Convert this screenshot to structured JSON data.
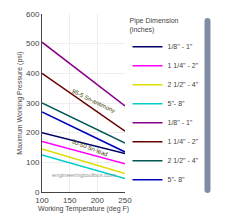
{
  "chart_data": {
    "type": "line",
    "xlabel": "Working Temperature (deg F)",
    "ylabel": "Maximum Working Pressure (psi)",
    "x": [
      100,
      250
    ],
    "xlim": [
      100,
      250
    ],
    "ylim": [
      0,
      600
    ],
    "xticks": [
      100,
      150,
      200,
      250
    ],
    "yticks": [
      0,
      100,
      200,
      300,
      400,
      500,
      600
    ],
    "grid": true,
    "legend": "right",
    "legend_title": "Pipe Dimension\n(inches)",
    "series": [
      {
        "name": "1/8\" - 1\"",
        "color": "#000066",
        "values": [
          200,
          130
        ]
      },
      {
        "name": "1 1/4\" - 2\"",
        "color": "#ff00ff",
        "values": [
          170,
          95
        ]
      },
      {
        "name": "2 1/2\" - 4\"",
        "color": "#dddd00",
        "values": [
          145,
          62
        ]
      },
      {
        "name": "5\"- 8\"",
        "color": "#00cccc",
        "values": [
          125,
          45
        ]
      },
      {
        "name": "1/8\" - 1\"",
        "color": "#880088",
        "values": [
          505,
          290
        ]
      },
      {
        "name": "1 1/4\" - 2\"",
        "color": "#660000",
        "values": [
          400,
          205
        ]
      },
      {
        "name": "2 1/2\" - 4\"",
        "color": "#005555",
        "values": [
          300,
          165
        ]
      },
      {
        "name": "5\"- 8\"",
        "color": "#0000bb",
        "values": [
          270,
          135
        ]
      }
    ],
    "annotations": [
      {
        "text": "95-5 Sn-antimony",
        "x": 148,
        "y": 255
      },
      {
        "text": "50-50 Sn-lead",
        "x": 148,
        "y": 108
      }
    ],
    "watermark": "engineeringtoolbox.com"
  }
}
